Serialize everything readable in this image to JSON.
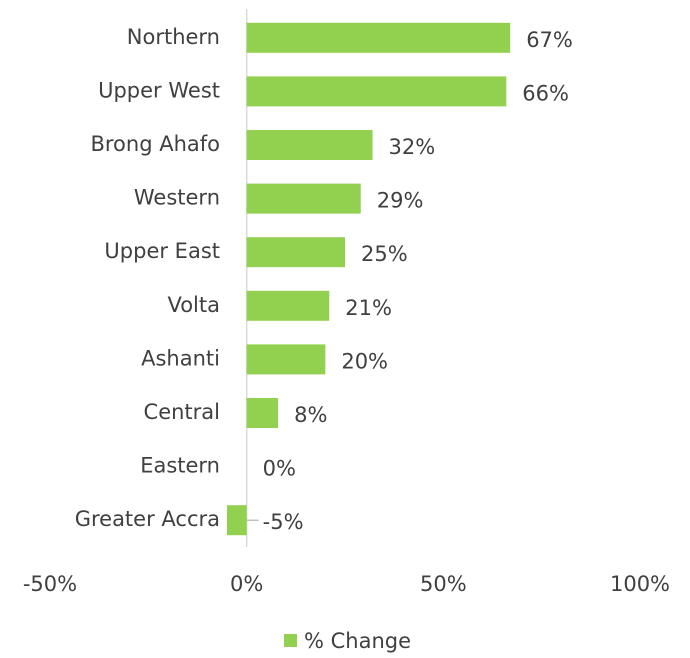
{
  "chart_data": {
    "type": "bar",
    "orientation": "horizontal",
    "categories": [
      "Northern",
      "Upper West",
      "Brong Ahafo",
      "Western",
      "Upper East",
      "Volta",
      "Ashanti",
      "Central",
      "Eastern",
      "Greater Accra"
    ],
    "series": [
      {
        "name": "% Change",
        "color": "#92d050",
        "values": [
          67,
          66,
          32,
          29,
          25,
          21,
          20,
          8,
          0,
          -5
        ],
        "value_labels": [
          "67%",
          "66%",
          "32%",
          "29%",
          "25%",
          "21%",
          "20%",
          "8%",
          "0%",
          "-5%"
        ]
      }
    ],
    "xlim": [
      -50,
      100
    ],
    "xticks": [
      {
        "value": -50,
        "label": "-50%"
      },
      {
        "value": 0,
        "label": "0%"
      },
      {
        "value": 50,
        "label": "50%"
      },
      {
        "value": 100,
        "label": "100%"
      }
    ],
    "legend": "bottom"
  }
}
